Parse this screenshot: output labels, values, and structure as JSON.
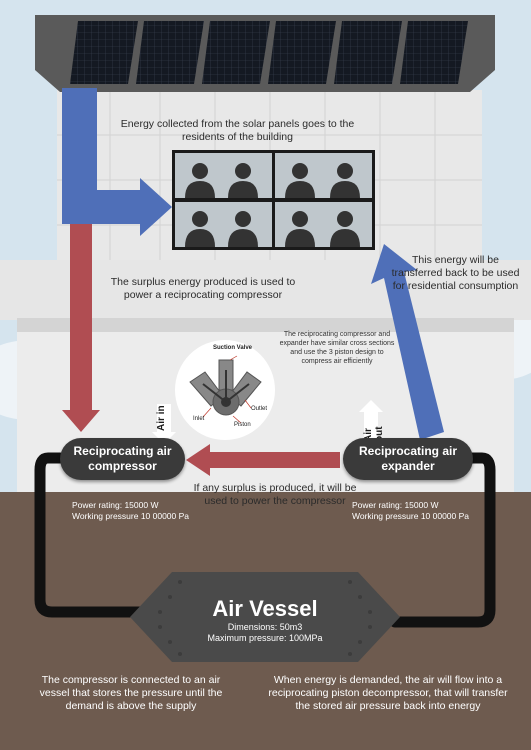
{
  "texts": {
    "energy_collected": "Energy collected from the solar panels goes to the residents of the building",
    "surplus_energy": "The surplus energy produced is used to power a reciprocating compressor",
    "transferred_back": "This energy will be transferred back to be used for residential consumption",
    "piston_note": "The reciprocating compressor and expander have similar cross sections and use the 3 piston design to compress air efficiently",
    "surplus_loop": "If any surplus is produced, it will be used to power the compressor",
    "compressor_connected": "The compressor is connected to an air vessel that stores the pressure until the demand is above the supply",
    "energy_demanded": "When energy is demanded, the air will flow into a reciprocating piston decompressor, that will transfer the stored air pressure back into energy"
  },
  "compressor": {
    "title": "Reciprocating air compressor",
    "power": "Power rating: 15000 W",
    "pressure": "Working pressure 10 00000 Pa",
    "air_label": "Air in"
  },
  "expander": {
    "title": "Reciprocating air expander",
    "power": "Power rating: 15000 W",
    "pressure": "Working pressure 10 00000 Pa",
    "air_label": "Air out"
  },
  "vessel": {
    "title": "Air Vessel",
    "dimensions": "Dimensions: 50m3",
    "max_pressure": "Maximum pressure: 100MPa"
  },
  "piston_diagram": {
    "suction_valve": "Suction Valve",
    "inlet": "Inlet",
    "outlet": "Outlet",
    "piston": "Piston"
  },
  "colors": {
    "blue_arrow": "#4f6fb8",
    "red_arrow": "#b04d52",
    "ground": "#6e5b4f",
    "pill": "#3a3a3a",
    "pipe": "#111111"
  }
}
